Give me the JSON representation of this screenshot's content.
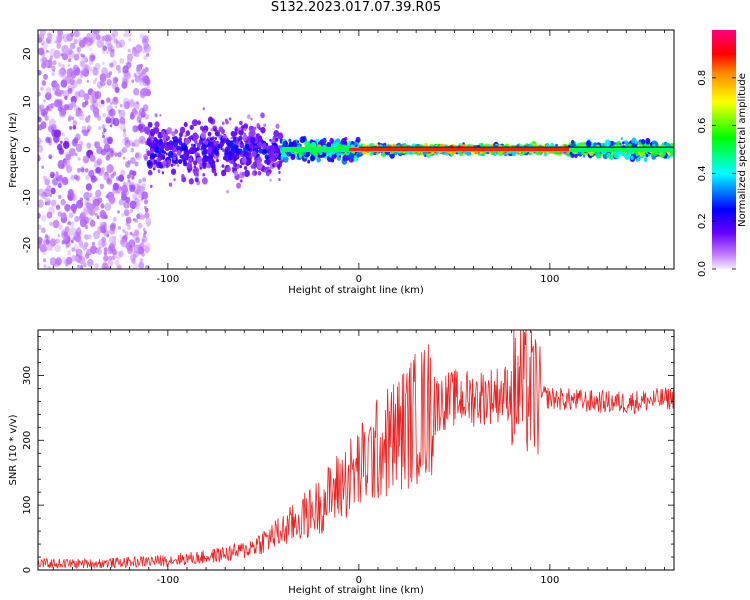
{
  "title": "S132.2023.017.07.39.R05",
  "chart_data": [
    {
      "type": "heatmap",
      "xlabel": "Height of straight line (km)",
      "ylabel": "Frequency (Hz)",
      "xlim": [
        -168,
        165
      ],
      "ylim": [
        -25,
        25
      ],
      "xticks": [
        "-100",
        "0",
        "100"
      ],
      "yticks": [
        "-20",
        "-10",
        "0",
        "10",
        "20"
      ],
      "colorbar": {
        "label": "Normalized spectral amplitude",
        "range": [
          0,
          1
        ],
        "ticks": [
          "0.0",
          "0.2",
          "0.4",
          "0.6",
          "0.8"
        ],
        "colors": [
          "#f3e6ff",
          "#8800ff",
          "#0000ff",
          "#00ffff",
          "#00ff00",
          "#ffff00",
          "#ff8800",
          "#ff0000",
          "#ff0080"
        ]
      },
      "segments": [
        {
          "x_start": -168,
          "x_end": -110,
          "description": "sparse scattered noise",
          "amplitude": 0.12,
          "freq_spread": 25
        },
        {
          "x_start": -110,
          "x_end": -40,
          "description": "noisy band",
          "amplitude": 0.25,
          "freq_spread": 6
        },
        {
          "x_start": -40,
          "x_end": 0,
          "description": "converging signal",
          "amplitude": 0.6,
          "freq_spread": 2
        },
        {
          "x_start": 0,
          "x_end": 110,
          "description": "strong narrow carrier",
          "amplitude": 0.9,
          "freq_spread": 0.8
        },
        {
          "x_start": 110,
          "x_end": 165,
          "description": "carrier with spread",
          "amplitude": 0.7,
          "freq_spread": 1.5
        }
      ]
    },
    {
      "type": "line",
      "xlabel": "Height of straight line (km)",
      "ylabel": "SNR (10 * v/v)",
      "xlim": [
        -168,
        165
      ],
      "ylim": [
        0,
        370
      ],
      "xticks": [
        "-100",
        "0",
        "100"
      ],
      "yticks": [
        "0",
        "100",
        "200",
        "300"
      ],
      "grid": false,
      "color": "#ee2222",
      "x": [
        -168,
        -140,
        -120,
        -100,
        -80,
        -60,
        -50,
        -40,
        -30,
        -20,
        -10,
        0,
        10,
        20,
        30,
        40,
        50,
        60,
        70,
        80,
        85,
        90,
        95,
        100,
        120,
        140,
        165
      ],
      "y": [
        10,
        10,
        12,
        15,
        20,
        30,
        45,
        60,
        80,
        100,
        130,
        155,
        185,
        210,
        235,
        255,
        265,
        265,
        270,
        275,
        280,
        270,
        270,
        265,
        260,
        258,
        265
      ]
    }
  ]
}
